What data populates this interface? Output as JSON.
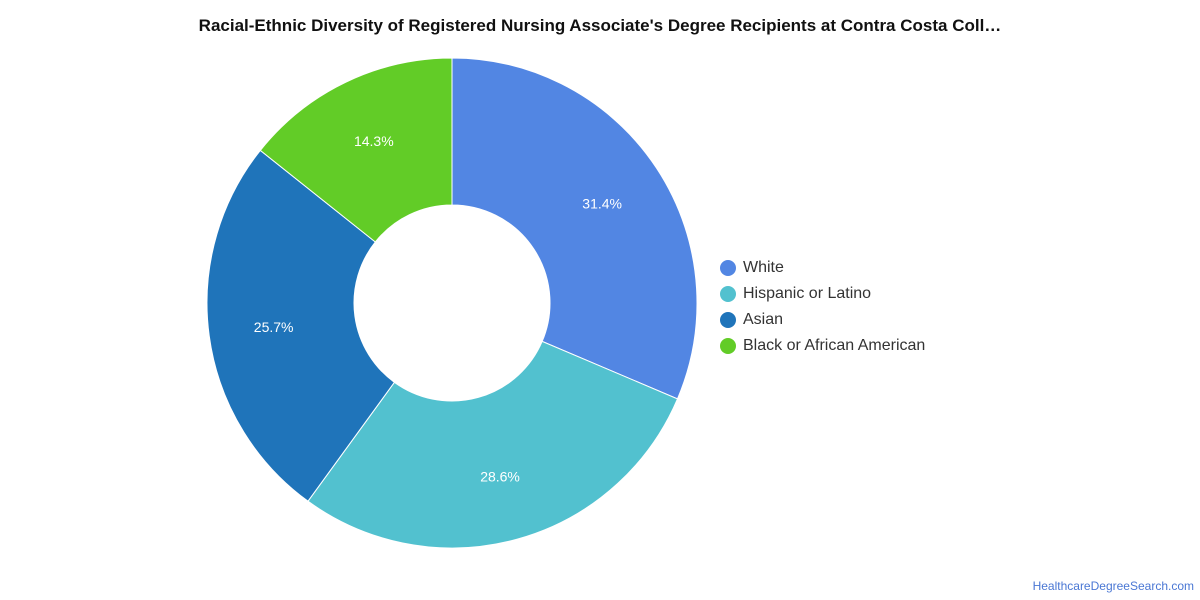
{
  "chart_data": {
    "type": "pie",
    "title": "Racial-Ethnic Diversity of Registered Nursing Associate's Degree Recipients at Contra Costa Coll…",
    "categories": [
      "White",
      "Hispanic or Latino",
      "Asian",
      "Black or African American"
    ],
    "values": [
      31.4,
      28.6,
      25.7,
      14.3
    ],
    "value_labels": [
      "31.4%",
      "28.6%",
      "25.7%",
      "14.3%"
    ],
    "colors": [
      "#5286e3",
      "#52c1cf",
      "#1f74ba",
      "#62cc27"
    ],
    "donut": true,
    "legend_position": "right"
  },
  "footer": {
    "source_link": "HealthcareDegreeSearch.com"
  }
}
